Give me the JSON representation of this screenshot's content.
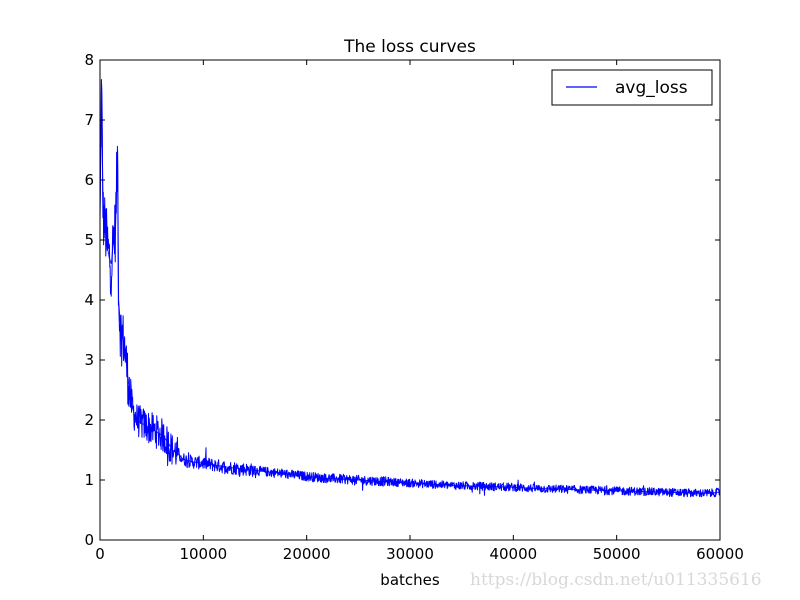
{
  "chart_data": {
    "type": "line",
    "title": "The loss curves",
    "xlabel": "batches",
    "ylabel": "",
    "xlim": [
      0,
      60000
    ],
    "ylim": [
      0,
      8
    ],
    "xticks": [
      "0",
      "10000",
      "20000",
      "30000",
      "40000",
      "50000",
      "60000"
    ],
    "yticks": [
      "0",
      "1",
      "2",
      "3",
      "4",
      "5",
      "6",
      "7",
      "8"
    ],
    "grid": false,
    "legend": {
      "placement": "top-right"
    },
    "series": [
      {
        "name": "avg_loss",
        "color": "#0000ff",
        "x": [
          0,
          150,
          300,
          500,
          700,
          900,
          1100,
          1300,
          1500,
          1700,
          1800,
          2000,
          2200,
          2400,
          2700,
          3000,
          3300,
          3600,
          4000,
          4500,
          5000,
          5500,
          6000,
          6500,
          7000,
          7500,
          8000,
          9000,
          10000,
          11000,
          12000,
          13000,
          14000,
          15000,
          16000,
          17000,
          18000,
          19000,
          20000,
          22000,
          24000,
          26000,
          28000,
          30000,
          32000,
          34000,
          36000,
          38000,
          40000,
          42000,
          44000,
          46000,
          48000,
          50000,
          52000,
          54000,
          56000,
          58000,
          59000,
          60000
        ],
        "y": [
          5.3,
          7.6,
          5.4,
          5.2,
          4.9,
          4.7,
          4.6,
          5.0,
          5.2,
          6.5,
          4.0,
          3.5,
          3.4,
          3.2,
          2.7,
          2.3,
          2.1,
          2.0,
          1.95,
          1.9,
          1.85,
          1.8,
          1.75,
          1.65,
          1.5,
          1.45,
          1.35,
          1.3,
          1.28,
          1.25,
          1.22,
          1.2,
          1.18,
          1.16,
          1.14,
          1.12,
          1.1,
          1.08,
          1.06,
          1.03,
          1.01,
          0.99,
          0.97,
          0.95,
          0.93,
          0.91,
          0.9,
          0.89,
          0.88,
          0.86,
          0.85,
          0.84,
          0.83,
          0.82,
          0.81,
          0.8,
          0.79,
          0.78,
          0.78,
          0.8
        ]
      }
    ]
  },
  "watermark": "https://blog.csdn.net/u011335616"
}
